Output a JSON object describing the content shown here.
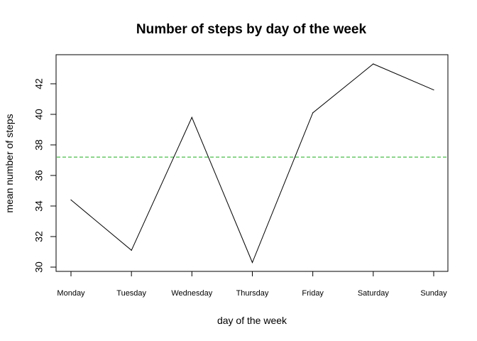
{
  "chart_data": {
    "type": "line",
    "title": "Number of steps by day of the week",
    "xlabel": "day of the week",
    "ylabel": "mean number of steps",
    "categories": [
      "Monday",
      "Tuesday",
      "Wednesday",
      "Thursday",
      "Friday",
      "Saturday",
      "Sunday"
    ],
    "series": [
      {
        "values": [
          34.4,
          31.1,
          39.8,
          30.3,
          40.1,
          43.3,
          41.6
        ],
        "color": "#000000",
        "line_style": "solid"
      }
    ],
    "reference_lines": [
      {
        "orientation": "horizontal",
        "y": 37.2,
        "color": "#22aa22",
        "line_style": "dashed"
      }
    ],
    "ylim": [
      30,
      43.3
    ],
    "yticks": [
      30,
      32,
      34,
      36,
      38,
      40,
      42
    ],
    "grid": false,
    "legend": "none"
  }
}
